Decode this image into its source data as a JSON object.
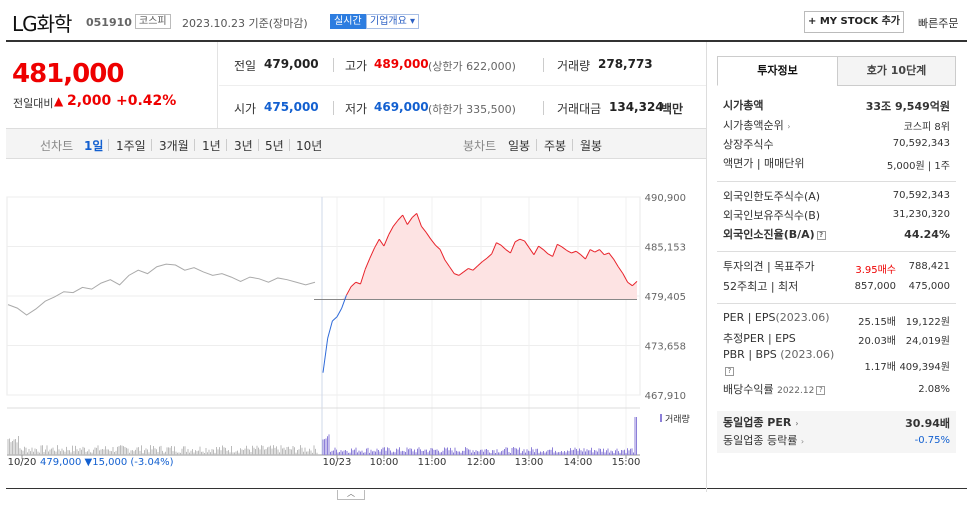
{
  "header": {
    "stock_name": "LG화학",
    "stock_code": "051910",
    "market": "코스피",
    "date": "2023.10.23 기준(장마감)",
    "realtime": "실시간",
    "company_info": "기업개요",
    "mystock_label": "+ MY STOCK 추가",
    "quick_order": "빠른주문"
  },
  "price": {
    "current": "481,000",
    "change_label": "전일대비",
    "change_arrow": "▲",
    "change": "2,000",
    "change_pct": "+0.42%"
  },
  "stats": {
    "prev_close_label": "전일",
    "prev_close": "479,000",
    "high_label": "고가",
    "high": "489,000",
    "upper_limit": "(상한가 622,000)",
    "volume_label": "거래량",
    "volume": "278,773",
    "open_label": "시가",
    "open": "475,000",
    "low_label": "저가",
    "low": "469,000",
    "lower_limit": "(하한가 335,500)",
    "amount_label": "거래대금",
    "amount": "134,324",
    "amount_unit": "백만"
  },
  "periods": {
    "line_label": "선차트",
    "line_items": [
      "1일",
      "1주일",
      "3개월",
      "1년",
      "3년",
      "5년",
      "10년"
    ],
    "candle_label": "봉차트",
    "candle_items": [
      "일봉",
      "주봉",
      "월봉"
    ]
  },
  "panel": {
    "tab_info": "투자정보",
    "tab_hoga": "호가 10단계",
    "rows": {
      "mcap_label": "시가총액",
      "mcap": "33조 9,549억원",
      "mcap_rank_label": "시가총액순위",
      "mcap_rank": "코스피 8위",
      "shares_label": "상장주식수",
      "shares": "70,592,343",
      "par_label": "액면가 | 매매단위",
      "par": "5,000원 | 1주",
      "foreign_limit_label": "외국인한도주식수(A)",
      "foreign_limit": "70,592,343",
      "foreign_hold_label": "외국인보유주식수(B)",
      "foreign_hold": "31,230,320",
      "foreign_ratio_label": "외국인소진율(B/A)",
      "foreign_ratio": "44.24%",
      "opinion_label": "투자의견 | 목표주가",
      "opinion_rating": "3.95매수",
      "opinion_target": "788,421",
      "w52_label": "52주최고 | 최저",
      "w52_high": "857,000",
      "w52_low": "475,000",
      "per_label": "PER | EPS",
      "per_date": "(2023.06)",
      "per": "25.15배",
      "eps": "19,122원",
      "eper_label": "추정PER | EPS",
      "eper": "20.03배",
      "eeps": "24,019원",
      "pbr_label": "PBR | BPS",
      "pbr_date": "(2023.06)",
      "pbr": "1.17배",
      "bps": "409,394원",
      "div_label": "배당수익률",
      "div_date": "2022.12",
      "div": "2.08%",
      "ind_per_label": "동일업종 PER",
      "ind_per": "30.94배",
      "ind_chg_label": "동일업종 등락률",
      "ind_chg": "-0.75%"
    }
  },
  "chart_data": {
    "type": "line",
    "y_ticks": [
      "490,900",
      "485,153",
      "479,405",
      "473,658",
      "467,910"
    ],
    "ylim": [
      467910,
      490900
    ],
    "baseline": 479000,
    "x_ticks": [
      "10/20",
      "10/23",
      "10:00",
      "11:00",
      "12:00",
      "13:00",
      "14:00",
      "15:00"
    ],
    "prev_day_summary": {
      "close": "479,000",
      "arrow": "▼",
      "change": "15,000",
      "pct": "(-3.04%)"
    },
    "volume_legend": "거래량",
    "prev_day_series": [
      478400,
      478000,
      477200,
      477900,
      478800,
      479300,
      479900,
      479800,
      480400,
      480200,
      480900,
      481300,
      480700,
      481800,
      482400,
      482000,
      482800,
      483100,
      483000,
      482400,
      482700,
      482200,
      481800,
      482000,
      481600,
      481100,
      481600,
      481400,
      481000,
      481500,
      481300,
      481000,
      480700,
      481000
    ],
    "today_series": [
      470500,
      474500,
      476500,
      477000,
      478000,
      479500,
      480500,
      481000,
      480800,
      482500,
      483800,
      485000,
      486000,
      485200,
      486500,
      487500,
      488200,
      488800,
      487700,
      488500,
      489000,
      487500,
      486800,
      486000,
      485300,
      484800,
      483600,
      482800,
      482000,
      481800,
      482200,
      482600,
      482400,
      482900,
      483400,
      483800,
      484300,
      485600,
      485300,
      484800,
      484400,
      485700,
      486000,
      485800,
      485000,
      484200,
      485200,
      484800,
      484300,
      484000,
      485400,
      485100,
      484700,
      484400,
      484600,
      484200,
      483700,
      484800,
      484500,
      484800,
      484200,
      484400,
      483700,
      482800,
      482000,
      481000,
      480600,
      481100
    ]
  }
}
